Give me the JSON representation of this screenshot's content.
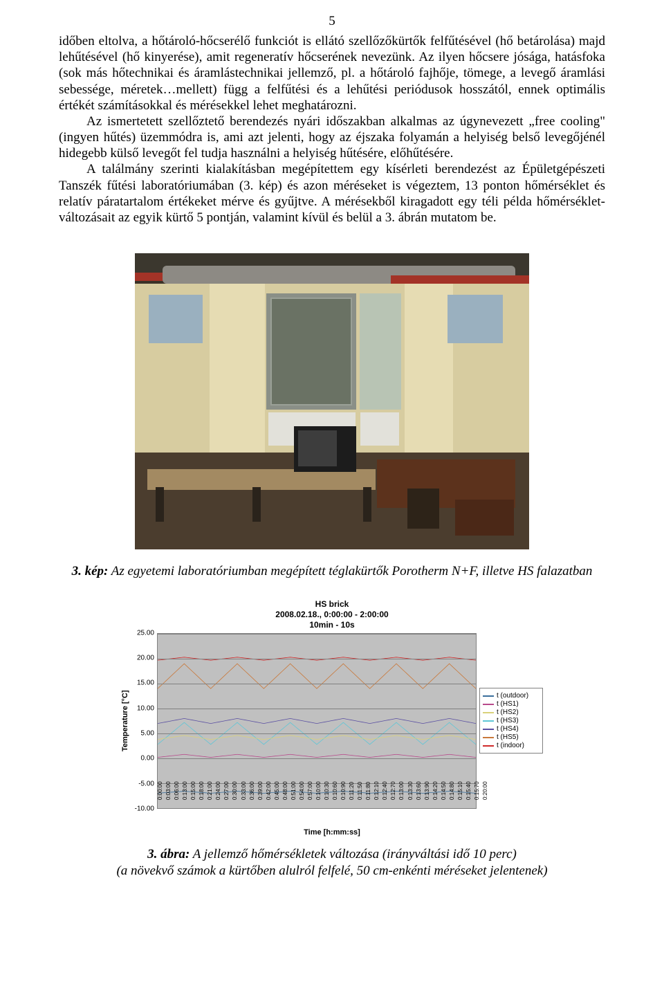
{
  "page_number": "5",
  "paragraphs": {
    "p1a": "időben eltolva, a hőtároló-hőcserélő funkciót is ellátó szellőzőkürtők felfűtésével (hő betárolása) majd lehűtésével (hő kinyerése), amit regeneratív hőcserének nevezünk. Az ilyen hőcsere jósága, hatásfoka (sok más hőtechnikai és áramlástechnikai jellemző, pl. a hőtároló fajhője, tömege, a levegő áramlási sebessége, méretek…mellett) függ a felfűtési és a lehűtési periódusok hosszától, ennek optimális értékét számításokkal és mérésekkel lehet meghatározni.",
    "p1b": "Az ismertetett szellőztető berendezés nyári időszakban alkalmas az úgynevezett „free cooling\" (ingyen hűtés) üzemmódra is, ami azt jelenti, hogy az éjszaka folyamán a helyiség belső levegőjénél hidegebb külső levegőt fel tudja használni a helyiség hűtésére, előhűtésére.",
    "p1c": "A találmány szerinti kialakításban megépítettem egy kísérleti berendezést az Épületgépészeti Tanszék fűtési laboratóriumában (3. kép) és azon méréseket is végeztem, 13 ponton hőmérséklet és relatív páratartalom értékeket mérve és gyűjtve. A mérésekből kiragadott egy téli példa hőmérséklet-változásait az egyik kürtő 5 pontján, valamint kívül és belül a 3. ábrán mutatom be."
  },
  "photo_caption_bold": "3. kép:",
  "photo_caption_rest": " Az egyetemi laboratóriumban megépített téglakürtők Porotherm N+F, illetve HS falazatban",
  "chart": {
    "title_line1": "HS brick",
    "title_line2": "2008.02.18.,  0:00:00 - 2:00:00",
    "title_line3": "10min - 10s",
    "ylabel": "Temperature [°C]",
    "xlabel": "Time [h:mm:ss]",
    "y_min": -10,
    "y_max": 25,
    "y_ticks": [
      "25.00",
      "20.00",
      "15.00",
      "10.00",
      "5.00",
      "0.00",
      "-5.00",
      "-10.00"
    ],
    "x_ticks": [
      "0:00:00",
      "0:03:00",
      "0:06:00",
      "0:13:00",
      "0:15:00",
      "0:18:00",
      "0:21:00",
      "0:24:00",
      "0:27:00",
      "0:30:00",
      "0:33:00",
      "0:36:00",
      "0:39:00",
      "0:42:00",
      "0:45:00",
      "0:48:00",
      "0:51:00",
      "0:54:00",
      "0:57:00",
      "0:10:00",
      "0:10:30",
      "0:10:60",
      "0:10:90",
      "0:11:20",
      "0:11:50",
      "0:11:80",
      "0:12:10",
      "0:12:40",
      "0:12:70",
      "0:13:00",
      "0:13:30",
      "0:13:60",
      "0:13:90",
      "0:14:20",
      "0:14:50",
      "0:14:80",
      "0:15:10",
      "0:15:40",
      "0:15:70",
      "0:20:00"
    ],
    "legend": [
      {
        "label": "t (outdoor)",
        "color": "#3a6f9c"
      },
      {
        "label": "t (HS1)",
        "color": "#b84a8b"
      },
      {
        "label": "t (HS2)",
        "color": "#d9d17a"
      },
      {
        "label": "t (HS3)",
        "color": "#5ec6d6"
      },
      {
        "label": "t (HS4)",
        "color": "#5a4fa2"
      },
      {
        "label": "t (HS5)",
        "color": "#c9783a"
      },
      {
        "label": "t (indoor)",
        "color": "#cf2a2a"
      }
    ],
    "series": {
      "indoor": {
        "color": "#cf2a2a",
        "baseline": 20.0,
        "amp": 0.3
      },
      "hs5": {
        "color": "#c9783a",
        "baseline": 16.5,
        "amp": 2.5
      },
      "hs4": {
        "color": "#5a4fa2",
        "baseline": 7.5,
        "amp": 0.5
      },
      "hs3": {
        "color": "#5ec6d6",
        "baseline": 5.0,
        "amp": 2.2
      },
      "hs2": {
        "color": "#d9d17a",
        "baseline": 4.2,
        "amp": 0.4
      },
      "hs1": {
        "color": "#b84a8b",
        "baseline": 0.5,
        "amp": 0.3
      },
      "outdoor": {
        "color": "#3a6f9c",
        "baseline": -6.8,
        "amp": 0.2
      }
    },
    "period_count": 6,
    "grid_color": "#808080",
    "plot_bg": "#c0c0c0"
  },
  "chart_caption_bold": "3. ábra:",
  "chart_caption_rest1": " A jellemző hőmérsékletek változása (irányváltási idő 10 perc)",
  "chart_caption_rest2": "(a növekvő számok a kürtőben alulról felfelé, 50 cm-enkénti méréseket jelentenek)"
}
